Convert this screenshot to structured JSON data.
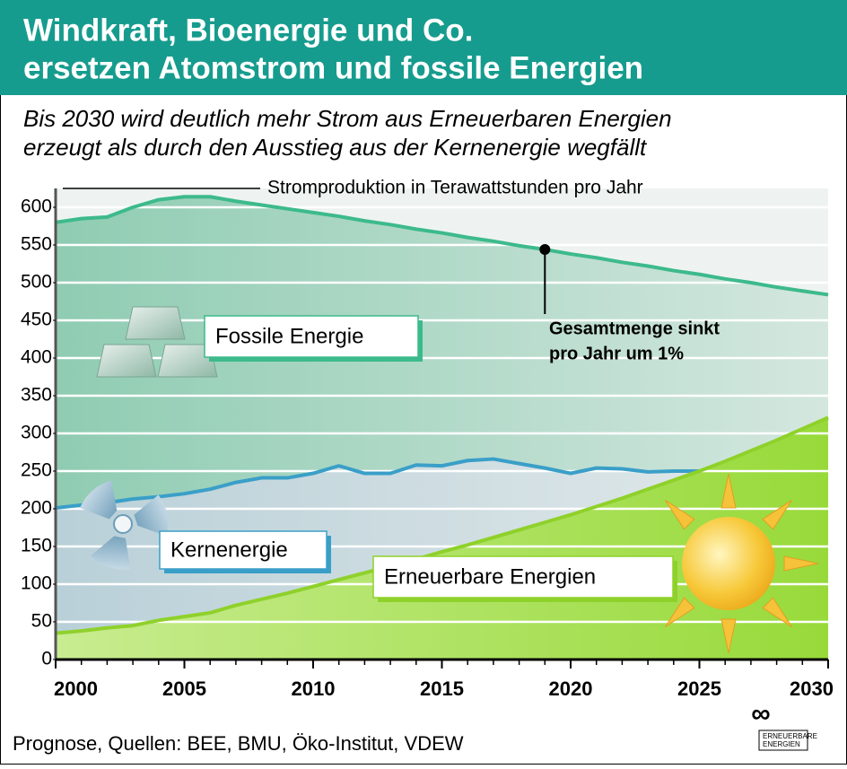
{
  "chart_data": {
    "type": "area",
    "title": [
      "Windkraft, Bioenergie und Co.",
      "ersetzen Atomstrom und fossile Energien"
    ],
    "subtitle": [
      "Bis 2030 wird deutlich mehr Strom aus Erneuerbaren Energien",
      "erzeugt als durch den Ausstieg aus der Kernenergie wegfällt"
    ],
    "y_label": "Stromproduktion in Terawattstunden pro Jahr",
    "x": [
      2000,
      2001,
      2002,
      2003,
      2004,
      2005,
      2006,
      2007,
      2008,
      2009,
      2010,
      2011,
      2012,
      2013,
      2014,
      2015,
      2016,
      2017,
      2018,
      2019,
      2020,
      2021,
      2022,
      2023,
      2024,
      2025,
      2026,
      2027,
      2028,
      2029,
      2030
    ],
    "series": [
      {
        "name": "Fossile Energie",
        "color": "#3dba8c",
        "values": [
          580,
          585,
          587,
          600,
          610,
          614,
          614,
          608,
          603,
          598,
          593,
          588,
          582,
          577,
          571,
          566,
          560,
          555,
          549,
          544,
          538,
          533,
          527,
          522,
          516,
          511,
          505,
          500,
          494,
          489,
          484
        ]
      },
      {
        "name": "Kernenergie",
        "color": "#3a9fc8",
        "values": [
          201,
          205,
          208,
          213,
          216,
          220,
          226,
          235,
          241,
          241,
          247,
          257,
          247,
          247,
          258,
          257,
          264,
          266,
          260,
          254,
          247,
          254,
          253,
          249,
          250,
          250,
          null,
          null,
          null,
          null,
          null
        ]
      },
      {
        "name": "Erneuerbare Energien",
        "color": "#8fd12b",
        "values": [
          35,
          38,
          42,
          45,
          52,
          57,
          62,
          72,
          80,
          88,
          97,
          106,
          115,
          124,
          133,
          143,
          152,
          162,
          172,
          182,
          192,
          203,
          214,
          226,
          238,
          250,
          263,
          277,
          291,
          306,
          321
        ]
      }
    ],
    "annotation": {
      "text": [
        "Gesamtmenge sinkt",
        "pro Jahr um 1%"
      ],
      "x": 2019,
      "y": 544
    },
    "xlim": [
      2000,
      2030
    ],
    "xticks": [
      2000,
      2005,
      2010,
      2015,
      2020,
      2025,
      2030
    ],
    "ylim": [
      0,
      625
    ],
    "yticks": [
      0,
      50,
      100,
      150,
      200,
      250,
      300,
      350,
      400,
      450,
      500,
      550,
      600
    ],
    "grid": true,
    "source": "Prognose, Quellen: BEE, BMU, Öko-Institut, VDEW",
    "logo": [
      "ERNEUERBARE",
      "ENERGIEN"
    ]
  }
}
